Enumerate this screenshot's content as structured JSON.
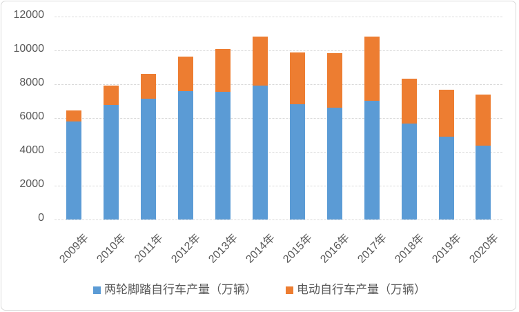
{
  "chart_data": {
    "type": "bar",
    "stacked": true,
    "title": "",
    "xlabel": "",
    "ylabel": "",
    "categories": [
      "2009年",
      "2010年",
      "2011年",
      "2012年",
      "2013年",
      "2014年",
      "2015年",
      "2016年",
      "2017年",
      "2018年",
      "2019年",
      "2020年"
    ],
    "series": [
      {
        "name": "两轮脚踏自行车产量（万辆）",
        "color": "#5b9bd5",
        "values": [
          5780,
          6790,
          7130,
          7580,
          7540,
          7900,
          6830,
          6620,
          7040,
          5680,
          4910,
          4370
        ]
      },
      {
        "name": "电动自行车产量（万辆）",
        "color": "#ed7d31",
        "values": [
          670,
          1140,
          1470,
          2050,
          2560,
          2900,
          3050,
          3200,
          3760,
          2630,
          2770,
          3000
        ]
      }
    ],
    "ylim": [
      0,
      12000
    ],
    "ytick_interval": 2000,
    "yticks": [
      "0",
      "2000",
      "4000",
      "6000",
      "8000",
      "10000",
      "12000"
    ],
    "grid": true,
    "gridline_color": "#d9d9d9",
    "axis_text_color": "#595959",
    "legend_position": "bottom"
  }
}
